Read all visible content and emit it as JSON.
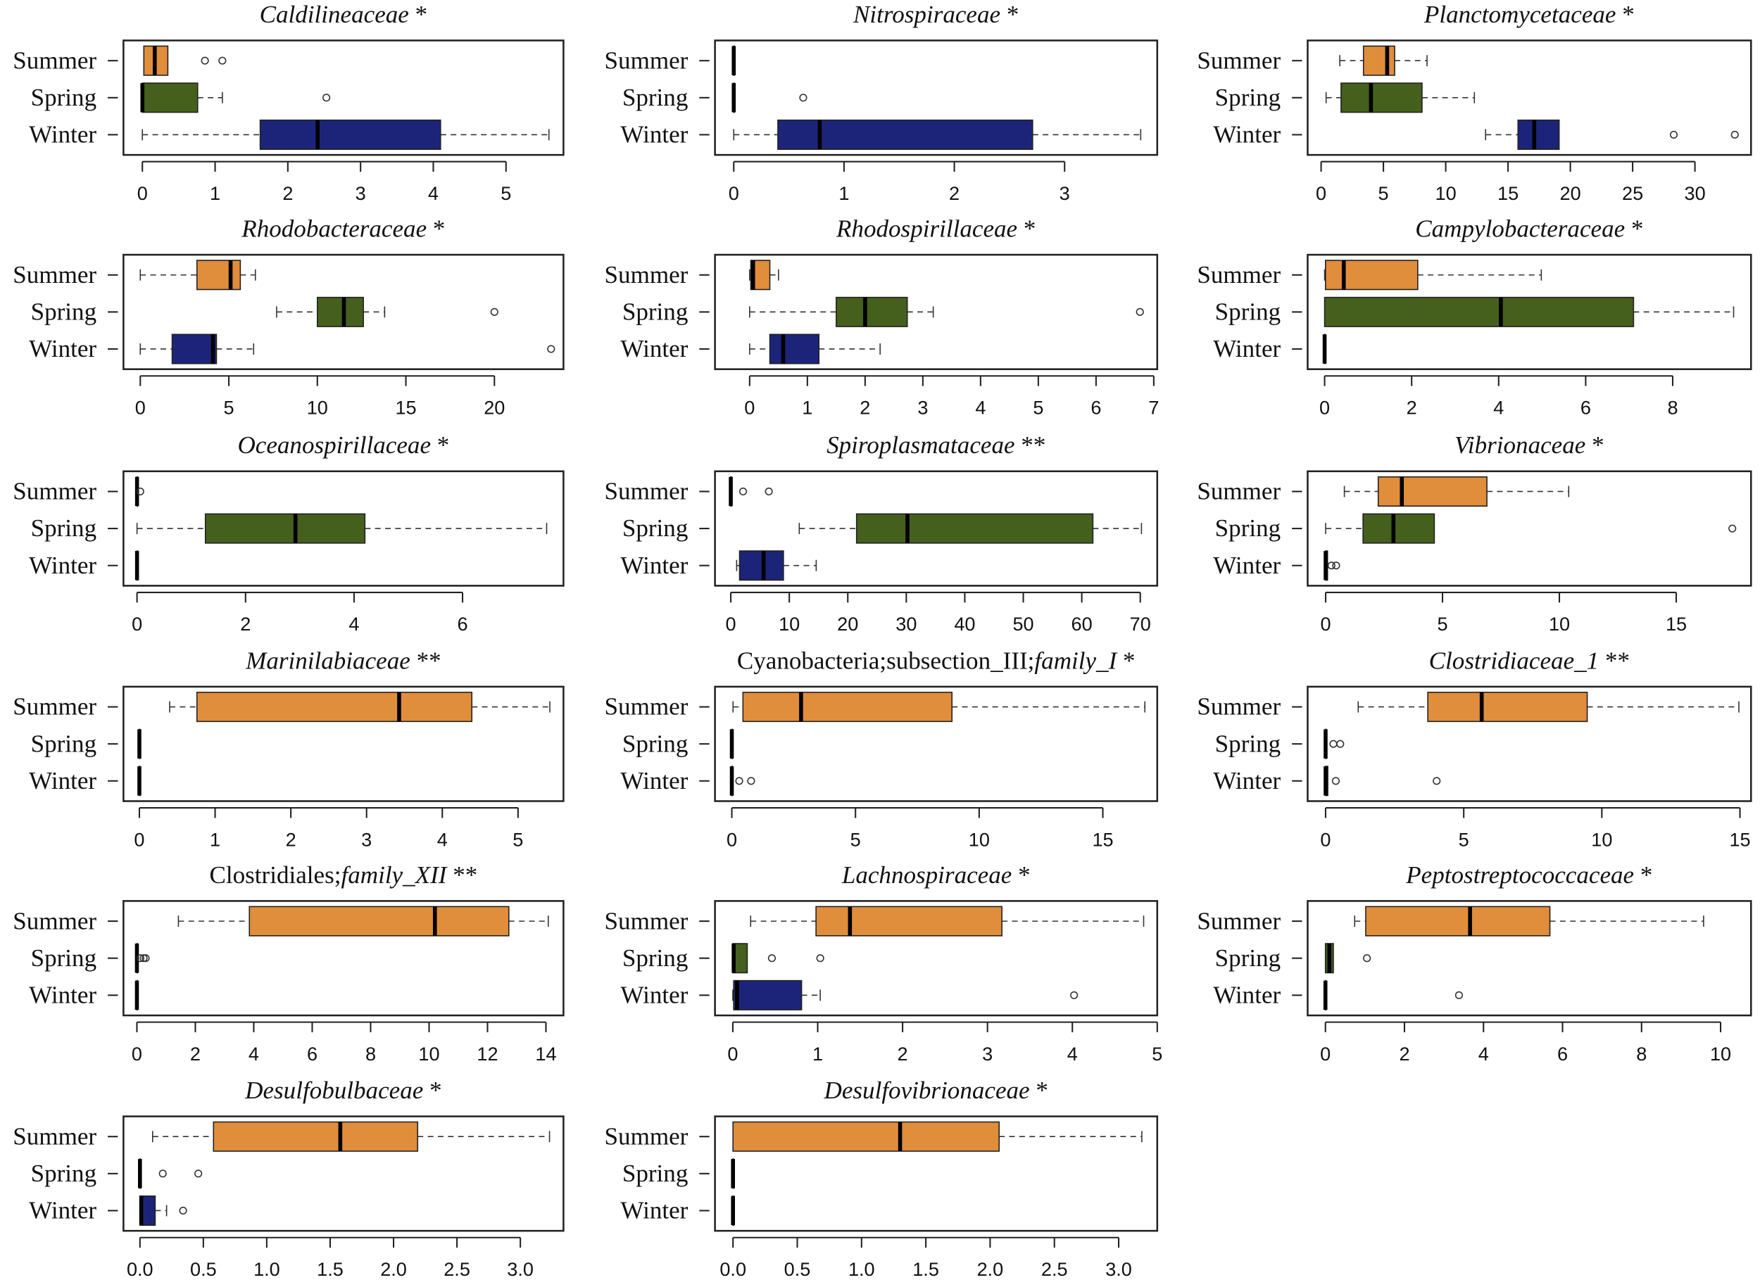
{
  "colors": {
    "Summer": "#e08d3c",
    "Spring": "#44601c",
    "Winter": "#1c247a"
  },
  "chart_data": [
    {
      "type": "box",
      "title_plain": "",
      "title_italic": "Caldilineaceae",
      "stars": " *",
      "xlim": [
        -0.26,
        5.79
      ],
      "ticks": [
        "0",
        "1",
        "2",
        "3",
        "4",
        "5"
      ],
      "groups": [
        {
          "name": "Summer",
          "stats": [
            0.02,
            0.02,
            0.17,
            0.35,
            0.35
          ],
          "outliers": [
            0.86,
            1.1
          ]
        },
        {
          "name": "Spring",
          "stats": [
            0,
            0,
            0,
            0.76,
            1.1
          ],
          "outliers": [
            2.53
          ]
        },
        {
          "name": "Winter",
          "stats": [
            0,
            1.62,
            2.41,
            4.1,
            5.59
          ],
          "outliers": []
        }
      ]
    },
    {
      "type": "box",
      "title_plain": "",
      "title_italic": "Nitrospiraceae",
      "stars": " *",
      "xlim": [
        -0.17,
        3.84
      ],
      "ticks": [
        "0",
        "1",
        "2",
        "3"
      ],
      "groups": [
        {
          "name": "Summer",
          "stats": [
            0,
            0,
            0,
            0,
            0
          ],
          "outliers": []
        },
        {
          "name": "Spring",
          "stats": [
            0,
            0,
            0,
            0,
            0
          ],
          "outliers": [
            0.63
          ]
        },
        {
          "name": "Winter",
          "stats": [
            0,
            0.4,
            0.78,
            2.71,
            3.69
          ],
          "outliers": []
        }
      ]
    },
    {
      "type": "box",
      "title_plain": "",
      "title_italic": "Planctomycetaceae",
      "stars": " *",
      "xlim": [
        -1.08,
        34.5
      ],
      "ticks": [
        "0",
        "5",
        "10",
        "15",
        "20",
        "25",
        "30"
      ],
      "groups": [
        {
          "name": "Summer",
          "stats": [
            1.5,
            3.4,
            5.3,
            5.9,
            8.5
          ],
          "outliers": []
        },
        {
          "name": "Spring",
          "stats": [
            0.4,
            1.6,
            4.0,
            8.1,
            12.3
          ],
          "outliers": []
        },
        {
          "name": "Winter",
          "stats": [
            13.2,
            15.8,
            17.1,
            19.1,
            19.1
          ],
          "outliers": [
            28.3,
            33.2
          ]
        }
      ]
    },
    {
      "type": "box",
      "title_plain": "",
      "title_italic": "Rhodobacteraceae",
      "stars": " *",
      "xlim": [
        -0.95,
        23.9
      ],
      "ticks": [
        "0",
        "5",
        "10",
        "15",
        "20"
      ],
      "groups": [
        {
          "name": "Summer",
          "stats": [
            0,
            3.2,
            5.1,
            5.65,
            6.5
          ],
          "outliers": []
        },
        {
          "name": "Spring",
          "stats": [
            7.7,
            10.0,
            11.5,
            12.6,
            13.8
          ],
          "outliers": [
            20
          ]
        },
        {
          "name": "Winter",
          "stats": [
            0,
            1.8,
            4.1,
            4.3,
            6.4
          ],
          "outliers": [
            23.2
          ]
        }
      ]
    },
    {
      "type": "box",
      "title_plain": "",
      "title_italic": "Rhodospirillaceae",
      "stars": " *",
      "xlim": [
        -0.6,
        7.06
      ],
      "ticks": [
        "0",
        "1",
        "2",
        "3",
        "4",
        "5",
        "6",
        "7"
      ],
      "groups": [
        {
          "name": "Summer",
          "stats": [
            0,
            0.02,
            0.06,
            0.35,
            0.5
          ],
          "outliers": []
        },
        {
          "name": "Spring",
          "stats": [
            0,
            1.5,
            2.0,
            2.73,
            3.18
          ],
          "outliers": [
            6.76
          ]
        },
        {
          "name": "Winter",
          "stats": [
            0,
            0.35,
            0.58,
            1.2,
            2.26
          ],
          "outliers": []
        }
      ]
    },
    {
      "type": "box",
      "title_plain": "",
      "title_italic": "Campylobacteraceae",
      "stars": " *",
      "xlim": [
        -0.39,
        9.8
      ],
      "ticks": [
        "0",
        "2",
        "4",
        "6",
        "8"
      ],
      "groups": [
        {
          "name": "Summer",
          "stats": [
            0,
            0.02,
            0.44,
            2.14,
            4.98
          ],
          "outliers": []
        },
        {
          "name": "Spring",
          "stats": [
            0,
            0,
            4.05,
            7.1,
            9.4
          ],
          "outliers": []
        },
        {
          "name": "Winter",
          "stats": [
            0,
            0,
            0,
            0,
            0
          ],
          "outliers": []
        }
      ]
    },
    {
      "type": "box",
      "title_plain": "",
      "title_italic": "Oceanospirillaceae",
      "stars": " *",
      "xlim": [
        -0.25,
        7.86
      ],
      "ticks": [
        "0",
        "2",
        "4",
        "6"
      ],
      "groups": [
        {
          "name": "Summer",
          "stats": [
            0,
            0,
            0,
            0,
            0
          ],
          "outliers": [
            0.06
          ]
        },
        {
          "name": "Spring",
          "stats": [
            0,
            1.26,
            2.92,
            4.2,
            7.55
          ],
          "outliers": []
        },
        {
          "name": "Winter",
          "stats": [
            0,
            0,
            0,
            0,
            0
          ],
          "outliers": []
        }
      ]
    },
    {
      "type": "box",
      "title_plain": "",
      "title_italic": "Spiroplasmataceae",
      "stars": " **",
      "xlim": [
        -2.7,
        72.9
      ],
      "ticks": [
        "0",
        "10",
        "20",
        "30",
        "40",
        "50",
        "60",
        "70"
      ],
      "groups": [
        {
          "name": "Summer",
          "stats": [
            0,
            0,
            0,
            0,
            0
          ],
          "outliers": [
            2.1,
            6.5
          ]
        },
        {
          "name": "Spring",
          "stats": [
            11.7,
            21.5,
            30.2,
            61.9,
            70.2
          ],
          "outliers": []
        },
        {
          "name": "Winter",
          "stats": [
            1,
            1.5,
            5.6,
            9.0,
            14.6
          ],
          "outliers": []
        }
      ]
    },
    {
      "type": "box",
      "title_plain": "",
      "title_italic": "Vibrionaceae",
      "stars": " *",
      "xlim": [
        -0.77,
        18.2
      ],
      "ticks": [
        "0",
        "5",
        "10",
        "15"
      ],
      "groups": [
        {
          "name": "Summer",
          "stats": [
            0.8,
            2.25,
            3.26,
            6.9,
            10.4
          ],
          "outliers": []
        },
        {
          "name": "Spring",
          "stats": [
            0,
            1.6,
            2.9,
            4.65,
            4.65
          ],
          "outliers": [
            17.4
          ]
        },
        {
          "name": "Winter",
          "stats": [
            0,
            0,
            0,
            0.08,
            0.08
          ],
          "outliers": [
            0.25,
            0.45
          ]
        }
      ]
    },
    {
      "type": "box",
      "title_plain": "",
      "title_italic": "Marinilabiaceae",
      "stars": " **",
      "xlim": [
        -0.21,
        5.6
      ],
      "ticks": [
        "0",
        "1",
        "2",
        "3",
        "4",
        "5"
      ],
      "groups": [
        {
          "name": "Summer",
          "stats": [
            0.4,
            0.76,
            3.43,
            4.39,
            5.42
          ],
          "outliers": []
        },
        {
          "name": "Spring",
          "stats": [
            0,
            0,
            0,
            0,
            0
          ],
          "outliers": []
        },
        {
          "name": "Winter",
          "stats": [
            0,
            0,
            0,
            0,
            0
          ],
          "outliers": []
        }
      ]
    },
    {
      "type": "box",
      "title_plain": "Cyanobacteria;subsection_III;",
      "title_italic": "family_I",
      "stars": " *",
      "xlim": [
        -0.68,
        17.2
      ],
      "ticks": [
        "0",
        "5",
        "10",
        "15"
      ],
      "groups": [
        {
          "name": "Summer",
          "stats": [
            0.05,
            0.45,
            2.8,
            8.9,
            16.7
          ],
          "outliers": []
        },
        {
          "name": "Spring",
          "stats": [
            0,
            0,
            0,
            0,
            0
          ],
          "outliers": []
        },
        {
          "name": "Winter",
          "stats": [
            0,
            0,
            0,
            0,
            0
          ],
          "outliers": [
            0.3,
            0.78
          ]
        }
      ]
    },
    {
      "type": "box",
      "title_plain": "",
      "title_italic": "Clostridiaceae_1",
      "stars": " **",
      "xlim": [
        -0.65,
        15.4
      ],
      "ticks": [
        "0",
        "5",
        "10",
        "15"
      ],
      "groups": [
        {
          "name": "Summer",
          "stats": [
            1.18,
            3.7,
            5.65,
            9.47,
            14.96
          ],
          "outliers": []
        },
        {
          "name": "Spring",
          "stats": [
            0,
            0,
            0,
            0,
            0
          ],
          "outliers": [
            0.28,
            0.53
          ]
        },
        {
          "name": "Winter",
          "stats": [
            0,
            0,
            0,
            0.08,
            0.08
          ],
          "outliers": [
            0.37,
            4.02
          ]
        }
      ]
    },
    {
      "type": "box",
      "title_plain": "Clostridiales;",
      "title_italic": "family_XII",
      "stars": " **",
      "xlim": [
        -0.46,
        14.6
      ],
      "ticks": [
        "0",
        "2",
        "4",
        "6",
        "8",
        "10",
        "12",
        "14"
      ],
      "groups": [
        {
          "name": "Summer",
          "stats": [
            1.42,
            3.85,
            10.2,
            12.73,
            14.08
          ],
          "outliers": []
        },
        {
          "name": "Spring",
          "stats": [
            0,
            0,
            0,
            0,
            0
          ],
          "outliers": [
            0.12,
            0.23,
            0.3
          ]
        },
        {
          "name": "Winter",
          "stats": [
            0,
            0,
            0,
            0,
            0
          ],
          "outliers": []
        }
      ]
    },
    {
      "type": "box",
      "title_plain": "",
      "title_italic": "Lachnospiraceae",
      "stars": " *",
      "xlim": [
        -0.21,
        5.0
      ],
      "ticks": [
        "0",
        "1",
        "2",
        "3",
        "4",
        "5"
      ],
      "groups": [
        {
          "name": "Summer",
          "stats": [
            0.21,
            0.98,
            1.38,
            3.17,
            4.84
          ],
          "outliers": []
        },
        {
          "name": "Spring",
          "stats": [
            0,
            0,
            0.01,
            0.17,
            0.17
          ],
          "outliers": [
            0.46,
            1.03
          ]
        },
        {
          "name": "Winter",
          "stats": [
            0,
            0.01,
            0.05,
            0.81,
            1.03
          ],
          "outliers": [
            4.02
          ]
        }
      ]
    },
    {
      "type": "box",
      "title_plain": "",
      "title_italic": "Peptostreptococcaceae",
      "stars": " *",
      "xlim": [
        -0.45,
        10.77
      ],
      "ticks": [
        "0",
        "2",
        "4",
        "6",
        "8",
        "10"
      ],
      "groups": [
        {
          "name": "Summer",
          "stats": [
            0.74,
            1.02,
            3.66,
            5.68,
            9.57
          ],
          "outliers": []
        },
        {
          "name": "Spring",
          "stats": [
            0,
            0,
            0.1,
            0.2,
            0.2
          ],
          "outliers": [
            1.05
          ]
        },
        {
          "name": "Winter",
          "stats": [
            0,
            0,
            0,
            0,
            0
          ],
          "outliers": [
            3.38
          ]
        }
      ]
    },
    {
      "type": "box",
      "title_plain": "",
      "title_italic": "Desulfobulbaceae",
      "stars": " *",
      "xlim": [
        -0.13,
        3.34
      ],
      "ticks": [
        "0.0",
        "0.5",
        "1.0",
        "1.5",
        "2.0",
        "2.5",
        "3.0"
      ],
      "groups": [
        {
          "name": "Summer",
          "stats": [
            0.1,
            0.58,
            1.58,
            2.19,
            3.23
          ],
          "outliers": []
        },
        {
          "name": "Spring",
          "stats": [
            0,
            0,
            0,
            0,
            0
          ],
          "outliers": [
            0.18,
            0.46
          ]
        },
        {
          "name": "Winter",
          "stats": [
            0,
            0,
            0.01,
            0.12,
            0.21
          ],
          "outliers": [
            0.34
          ]
        }
      ]
    },
    {
      "type": "box",
      "title_plain": "",
      "title_italic": "Desulfovibrionaceae",
      "stars": " *",
      "xlim": [
        -0.14,
        3.3
      ],
      "ticks": [
        "0.0",
        "0.5",
        "1.0",
        "1.5",
        "2.0",
        "2.5",
        "3.0"
      ],
      "groups": [
        {
          "name": "Summer",
          "stats": [
            0,
            0,
            1.3,
            2.07,
            3.18
          ],
          "outliers": []
        },
        {
          "name": "Spring",
          "stats": [
            0,
            0,
            0,
            0,
            0
          ],
          "outliers": []
        },
        {
          "name": "Winter",
          "stats": [
            0,
            0,
            0,
            0,
            0
          ],
          "outliers": []
        }
      ]
    }
  ]
}
